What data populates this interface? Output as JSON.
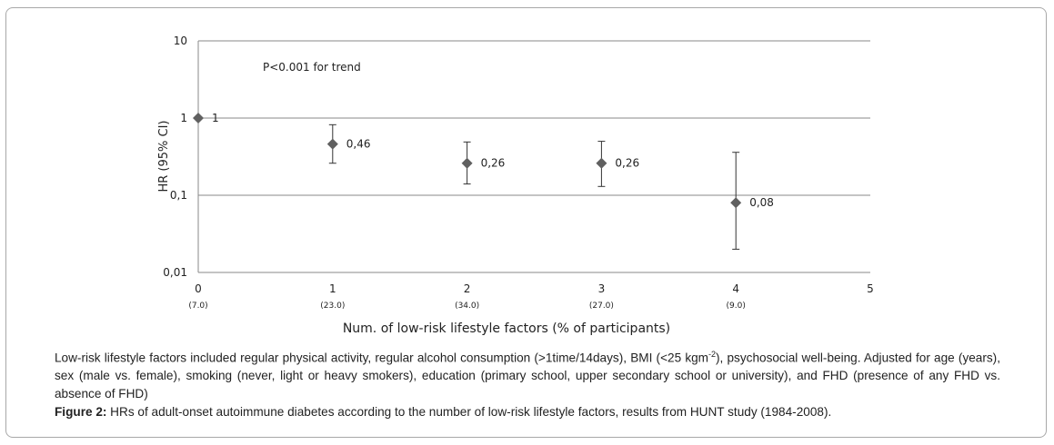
{
  "chart_data": {
    "type": "scatter",
    "y_scale": "log",
    "ylim": [
      0.01,
      10
    ],
    "xlim": [
      0,
      5
    ],
    "ylabel": "HR (95% CI)",
    "xlabel": "Num. of low-risk lifestyle factors (% of participants)",
    "y_ticks": [
      "10",
      "1",
      "0,1",
      "0,01"
    ],
    "x_ticks": [
      "0",
      "1",
      "2",
      "3",
      "4",
      "5"
    ],
    "x_sublabels": [
      "(7.0)",
      "(23.0)",
      "(34.0)",
      "(27.0)",
      "(9.0)",
      ""
    ],
    "annotation": "P<0.001 for  trend",
    "grid": true,
    "marker_color": "#606060",
    "points": [
      {
        "x": 0,
        "y": 1,
        "label": "1",
        "lower": null,
        "upper": null
      },
      {
        "x": 1,
        "y": 0.46,
        "label": "0,46",
        "lower": 0.26,
        "upper": 0.82
      },
      {
        "x": 2,
        "y": 0.26,
        "label": "0,26",
        "lower": 0.14,
        "upper": 0.49
      },
      {
        "x": 3,
        "y": 0.26,
        "label": "0,26",
        "lower": 0.13,
        "upper": 0.5
      },
      {
        "x": 4,
        "y": 0.08,
        "label": "0,08",
        "lower": 0.02,
        "upper": 0.36
      }
    ]
  },
  "caption": {
    "lifestyle_text": "Low-risk lifestyle factors included regular physical activity, regular alcohol consumption (>1time/14days), BMI (<25 kgm",
    "sup": "-2",
    "lifestyle_text2": "), psychosocial well-being. Adjusted for age (years), sex (male vs. female), smoking (never, light or heavy smokers), education (primary school, upper secondary school or university), and FHD (presence of any FHD vs. absence of FHD)",
    "figure_label": "Figure 2:",
    "figure_text": " HRs of adult-onset autoimmune diabetes according to the number of low-risk lifestyle factors, results from HUNT study (1984-2008)."
  }
}
